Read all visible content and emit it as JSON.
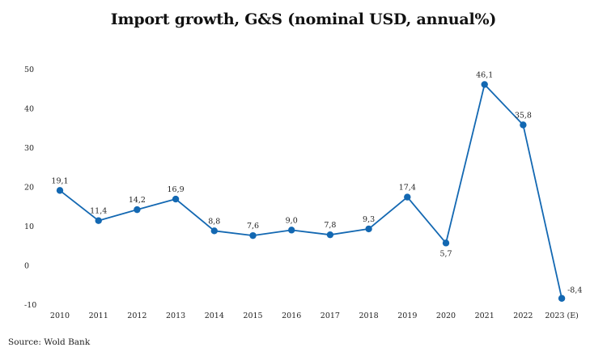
{
  "chart_data": {
    "type": "line",
    "title": "Import growth, G&S (nominal USD, annual%)",
    "xlabel": "",
    "ylabel": "",
    "categories": [
      "2010",
      "2011",
      "2012",
      "2013",
      "2014",
      "2015",
      "2016",
      "2017",
      "2018",
      "2019",
      "2020",
      "2021",
      "2022",
      "2023 (E)"
    ],
    "series": [
      {
        "values": [
          19.1,
          11.4,
          14.2,
          16.9,
          8.8,
          7.6,
          9.0,
          7.8,
          9.3,
          17.4,
          5.7,
          46.1,
          35.8,
          -8.4
        ],
        "data_labels": [
          "19,1",
          "11,4",
          "14,2",
          "16,9",
          "8,8",
          "7,6",
          "9,0",
          "7,8",
          "9,3",
          "17,4",
          "5,7",
          "46,1",
          "35,8",
          "-8,4"
        ],
        "color": "#1368B2"
      }
    ],
    "yticks": [
      "-10",
      "0",
      "10",
      "20",
      "30",
      "40",
      "50"
    ],
    "ylim": [
      -10,
      50
    ],
    "grid": false,
    "legend": "none"
  },
  "source": "Source: Wold Bank"
}
